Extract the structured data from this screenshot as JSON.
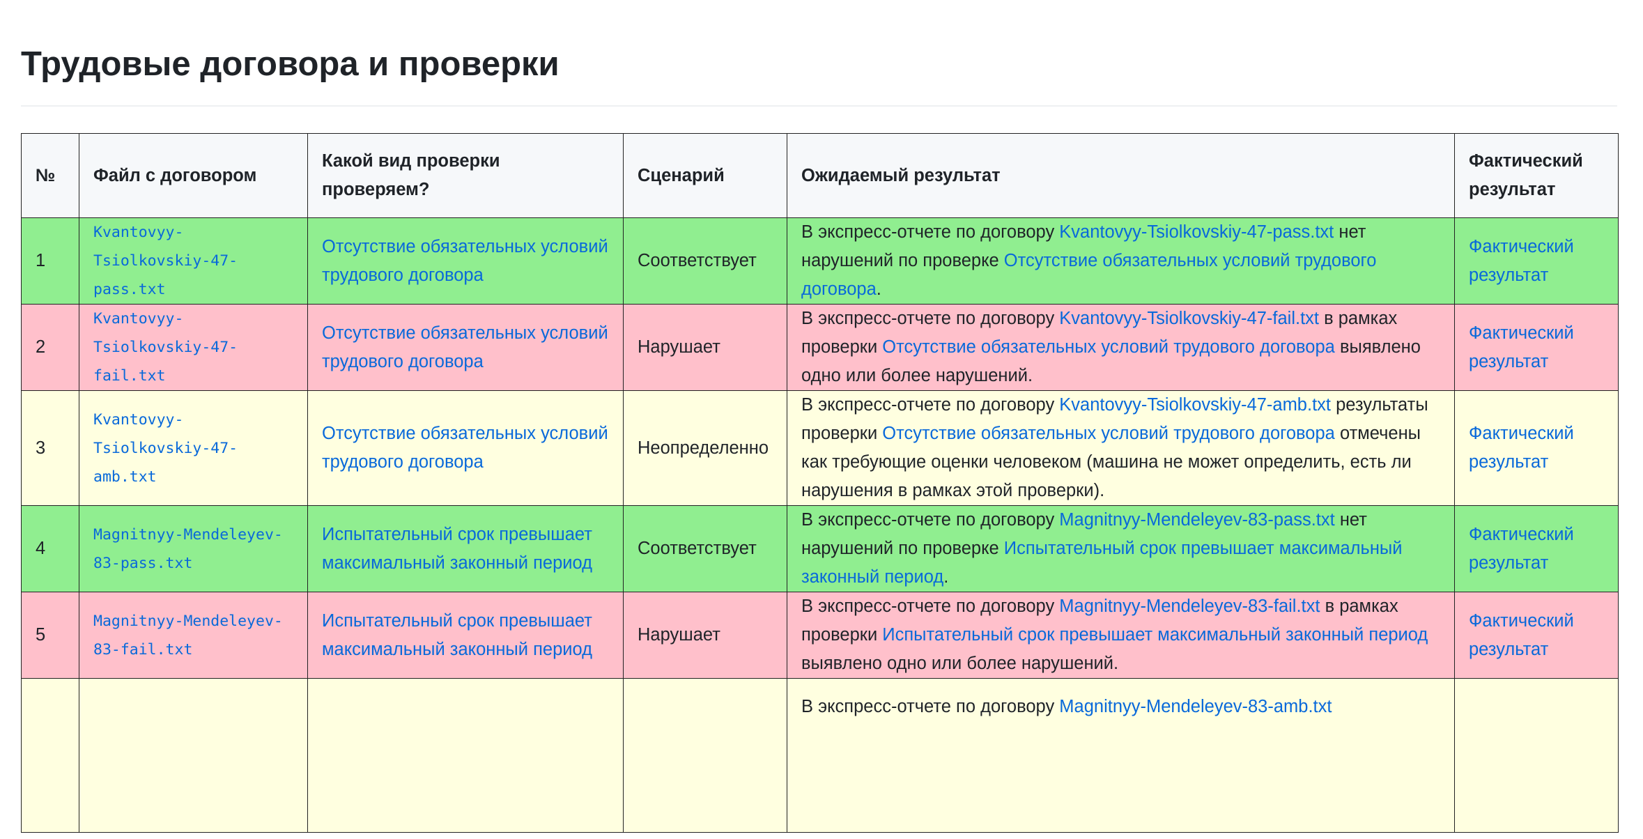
{
  "title": "Трудовые договора и проверки",
  "table": {
    "headers": [
      "№",
      "Файл с договором",
      "Какой вид проверки проверяем?",
      "Сценарий",
      "Ожидаемый результат",
      "Фактический результат"
    ],
    "rows": [
      {
        "num": "1",
        "file": "Kvantovyy-Tsiolkovskiy-47-pass.txt",
        "check": "Отсутствие обязательных условий трудового договора",
        "scenario": "Соответствует",
        "lead": "В экспресс-отчете по договору",
        "mid": "нет нарушений по проверке",
        "tail": ".",
        "actual": "Фактический результат",
        "status": "pass"
      },
      {
        "num": "2",
        "file": "Kvantovyy-Tsiolkovskiy-47-fail.txt",
        "check": "Отсутствие обязательных условий трудового договора",
        "scenario": "Нарушает",
        "lead": "В экспресс-отчете по договору",
        "mid": "в рамках проверки",
        "tail": "выявлено одно или более нарушений.",
        "actual": "Фактический результат",
        "status": "fail"
      },
      {
        "num": "3",
        "file": "Kvantovyy-Tsiolkovskiy-47-amb.txt",
        "check": "Отсутствие обязательных условий трудового договора",
        "scenario": "Неопределенно",
        "lead": "В экспресс-отчете по договору",
        "mid": "результаты проверки",
        "tail": "отмечены как требующие оценки человеком (машина не может определить, есть ли нарушения в рамках этой проверки).",
        "actual": "Фактический результат",
        "status": "amb"
      },
      {
        "num": "4",
        "file": "Magnitnyy-Mendeleyev-83-pass.txt",
        "check": "Испытательный срок превышает максимальный законный период",
        "scenario": "Соответствует",
        "lead": "В экспресс-отчете по договору",
        "mid": "нет нарушений по проверке",
        "tail": ".",
        "actual": "Фактический результат",
        "status": "pass"
      },
      {
        "num": "5",
        "file": "Magnitnyy-Mendeleyev-83-fail.txt",
        "check": "Испытательный срок превышает максимальный законный период",
        "scenario": "Нарушает",
        "lead": "В экспресс-отчете по договору",
        "mid": "в рамках проверки",
        "tail": "выявлено одно или более нарушений.",
        "actual": "Фактический результат",
        "status": "fail"
      },
      {
        "lead": "В экспресс-отчете по договору",
        "file_link": "Magnitnyy-Mendeleyev-83-amb.txt",
        "status": "amb"
      }
    ]
  }
}
